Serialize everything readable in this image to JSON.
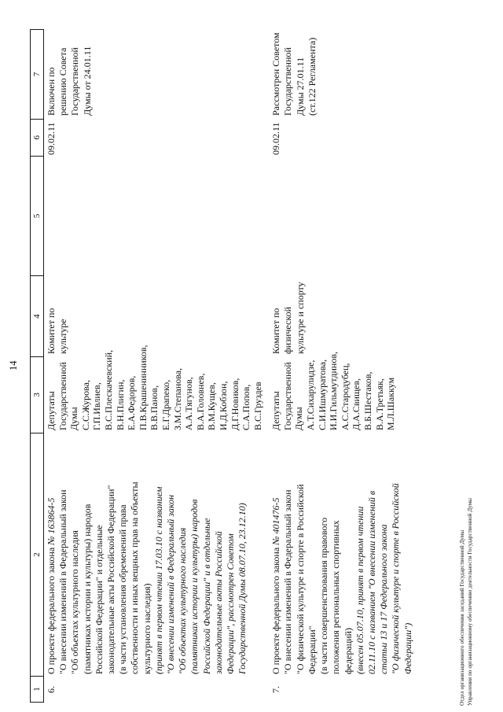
{
  "page": {
    "page_number": "14",
    "footer_line1": "Отдел организационного обеспечения заседаний Государственной Думы",
    "footer_line2": "Управления по организационному обеспечению деятельности Государственной Думы",
    "text_color": "#111111",
    "background_color": "#ffffff",
    "border_color": "#1a1a1a"
  },
  "table": {
    "column_headers": [
      "1",
      "2",
      "3",
      "4",
      "5",
      "6",
      "7"
    ],
    "rows": [
      {
        "num": "6.",
        "project_lines": [
          [
            {
              "t": "О проекте федерального закона ",
              "i": false
            },
            {
              "t": "№ 163864-5",
              "i": true
            }
          ],
          [
            {
              "t": "\"О внесении изменений в Федеральный закон",
              "i": false
            }
          ],
          [
            {
              "t": "\"Об объектах культурного наследия",
              "i": false
            }
          ],
          [
            {
              "t": "(памятниках истории и культуры) народов",
              "i": false
            }
          ],
          [
            {
              "t": "Российской Федерации\" и отдельные",
              "i": false
            }
          ],
          [
            {
              "t": "законодательные акты Российской Федерации\"",
              "i": false
            }
          ],
          [
            {
              "t": "(в части установления обременений права",
              "i": false
            }
          ],
          [
            {
              "t": "собственности и иных вещных прав на объекты",
              "i": false
            }
          ],
          [
            {
              "t": "культурного наследия)",
              "i": false
            }
          ],
          [
            {
              "t": "(принят в первом чтении 17.03.10 с названием",
              "i": true
            }
          ],
          [
            {
              "t": "\"О внесении изменений в Федеральный закон",
              "i": true
            }
          ],
          [
            {
              "t": "\"Об объектах культурного наследия",
              "i": true
            }
          ],
          [
            {
              "t": "(памятниках истории и культуры) народов",
              "i": true
            }
          ],
          [
            {
              "t": "Российской Федерации\" и в отдельные",
              "i": true
            }
          ],
          [
            {
              "t": "законодательные акты Российской",
              "i": true
            }
          ],
          [
            {
              "t": "Федерации\", рассмотрен Советом",
              "i": true
            }
          ],
          [
            {
              "t": "Государственной Думы 08.07.10, 23.12.10)",
              "i": true
            }
          ]
        ],
        "deputies_lines": [
          "Депутаты",
          "Государственной",
          "Думы",
          "С.С.Журова,",
          "Г.П.Ивлиев,",
          "В.С.Плескачевский,",
          "В.Н.Плигин,",
          "Е.А.Федоров,",
          "П.В.Крашенинников,",
          "В.В.Панов,",
          "Е.Г.Драпеко,",
          "З.М.Степанова,",
          "А.А.Тягунов,",
          "В.А.Головнев,",
          "В.М.Кущев,",
          "И.Д.Кобзон,",
          "Д.Г.Новиков,",
          "С.А.Попов,",
          "В.С.Груздев"
        ],
        "committee_lines": [
          "Комитет по",
          "культуре"
        ],
        "col5": "",
        "date": "09.02.11",
        "status_lines": [
          "Включен по",
          "решению Совета",
          "Государственной",
          "Думы от 24.01.11"
        ]
      },
      {
        "num": "7.",
        "project_lines": [
          [
            {
              "t": "О проекте федерального закона ",
              "i": false
            },
            {
              "t": "№ 401476-5",
              "i": true
            }
          ],
          [
            {
              "t": "\"О внесении изменений в Федеральный закон",
              "i": false
            }
          ],
          [
            {
              "t": "\"О физической культуре и спорте в Российской",
              "i": false
            }
          ],
          [
            {
              "t": "Федерации\"",
              "i": false
            }
          ],
          [
            {
              "t": "(в части совершенствования правового",
              "i": false
            }
          ],
          [
            {
              "t": "положения региональных спортивных",
              "i": false
            }
          ],
          [
            {
              "t": "федераций)",
              "i": false
            }
          ],
          [
            {
              "t": "(внесен 05.07.10, принят в первом чтении",
              "i": true
            }
          ],
          [
            {
              "t": "02.11.10 с названием \"О внесении изменений в",
              "i": true
            }
          ],
          [
            {
              "t": "статьи 13 и 17 Федерального закона",
              "i": true
            }
          ],
          [
            {
              "t": "\"О физической культуре и спорте в Российской",
              "i": true
            }
          ],
          [
            {
              "t": "Федерации\")",
              "i": true
            }
          ]
        ],
        "deputies_lines": [
          "Депутаты",
          "Государственной",
          "Думы",
          "А.Т.Сихарулидзе,",
          "С.И.Ишмуратова,",
          "И.И.Гильмутдинов,",
          "А.С.Стародубец,",
          "Д.А.Свищев,",
          "В.Б.Шестаков,",
          "В.А.Третьяк,",
          "М.Л.Шаккум"
        ],
        "committee_lines": [
          "Комитет по",
          "физической",
          "культуре и спорту"
        ],
        "col5": "",
        "date": "09.02.11",
        "status_lines": [
          "Рассмотрен Советом",
          "Государственной",
          "Думы 27.01.11",
          "(ст.122 Регламента)"
        ]
      }
    ]
  }
}
